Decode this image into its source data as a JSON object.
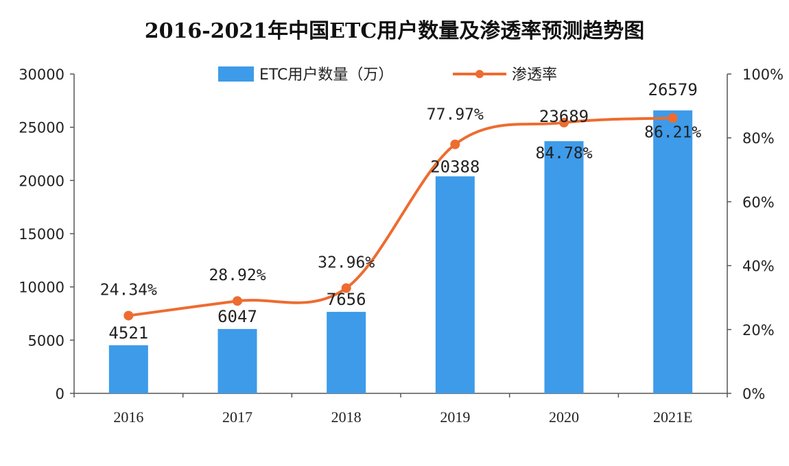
{
  "chart_data": {
    "type": "bar+line",
    "title": "2016-2021年中国ETC用户数量及渗透率预测趋势图",
    "categories": [
      "2016",
      "2017",
      "2018",
      "2019",
      "2020",
      "2021E"
    ],
    "series": [
      {
        "name": "ETC用户数量（万）",
        "type": "bar",
        "axis": "left",
        "values": [
          4521,
          6047,
          7656,
          20388,
          23689,
          26579
        ],
        "labels": [
          "4521",
          "6047",
          "7656",
          "20388",
          "23689",
          "26579"
        ],
        "color": "#3d9be9"
      },
      {
        "name": "渗透率",
        "type": "line",
        "axis": "right",
        "values": [
          24.34,
          28.92,
          32.96,
          77.97,
          84.78,
          86.21
        ],
        "labels": [
          "24.34%",
          "28.92%",
          "32.96%",
          "77.97%",
          "84.78%",
          "86.21%"
        ],
        "color": "#ed6c30"
      }
    ],
    "y_left": {
      "min": 0,
      "max": 30000,
      "ticks": [
        0,
        5000,
        10000,
        15000,
        20000,
        25000,
        30000
      ],
      "tick_labels": [
        "0",
        "5000",
        "10000",
        "15000",
        "20000",
        "25000",
        "30000"
      ]
    },
    "y_right": {
      "min": 0,
      "max": 100,
      "ticks": [
        0,
        20,
        40,
        60,
        80,
        100
      ],
      "tick_labels": [
        "0%",
        "20%",
        "40%",
        "60%",
        "80%",
        "100%"
      ]
    },
    "legend_position": "top-center",
    "grid": false
  }
}
